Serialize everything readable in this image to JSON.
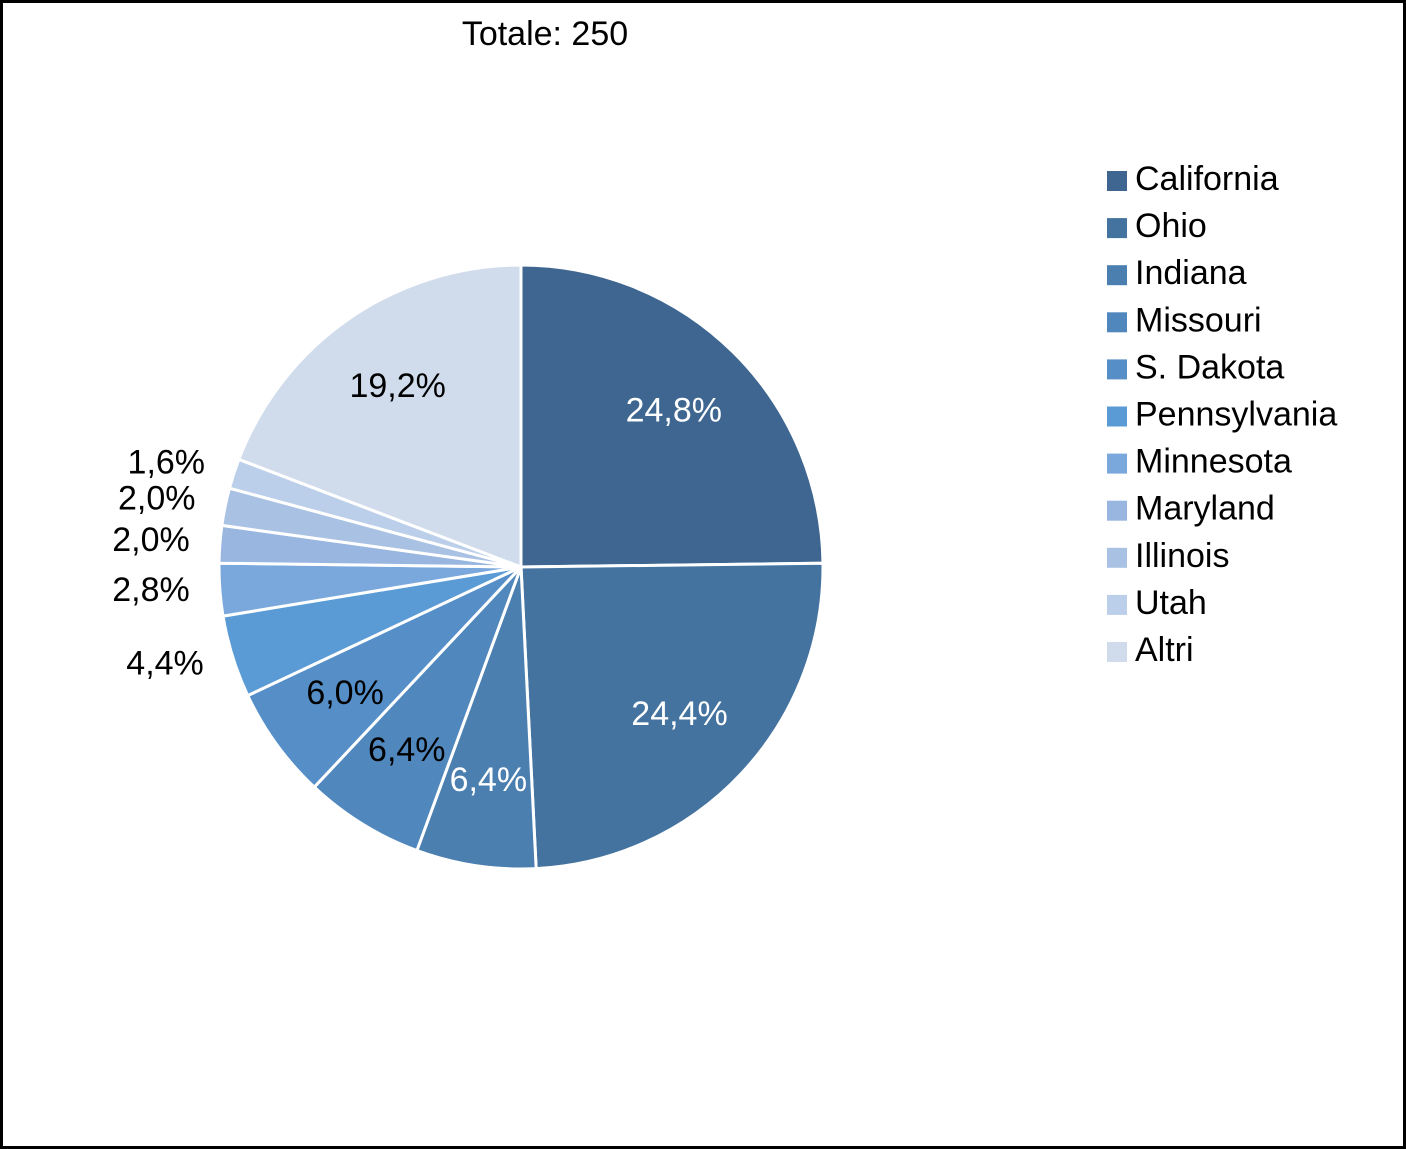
{
  "chart_data": {
    "type": "pie",
    "title": "Totale: 250",
    "categories": [
      "California",
      "Ohio",
      "Indiana",
      "Missouri",
      "S. Dakota",
      "Pennsylvania",
      "Minnesota",
      "Maryland",
      "Illinois",
      "Utah",
      "Altri"
    ],
    "values": [
      24.8,
      24.4,
      6.4,
      6.4,
      6.0,
      4.4,
      2.8,
      2.0,
      2.0,
      1.6,
      19.2
    ],
    "value_labels": [
      "24,8%",
      "24,4%",
      "6,4%",
      "6,4%",
      "6,0%",
      "4,4%",
      "2,8%",
      "2,0%",
      "2,0%",
      "1,6%",
      "19,2%"
    ],
    "colors": [
      "#3e6690",
      "#44739f",
      "#4a7fb0",
      "#5087bd",
      "#568fc8",
      "#5b9bd5",
      "#7aa8dc",
      "#98b6e0",
      "#a9c2e4",
      "#bccfea",
      "#d0dcec"
    ],
    "legend": "right"
  }
}
